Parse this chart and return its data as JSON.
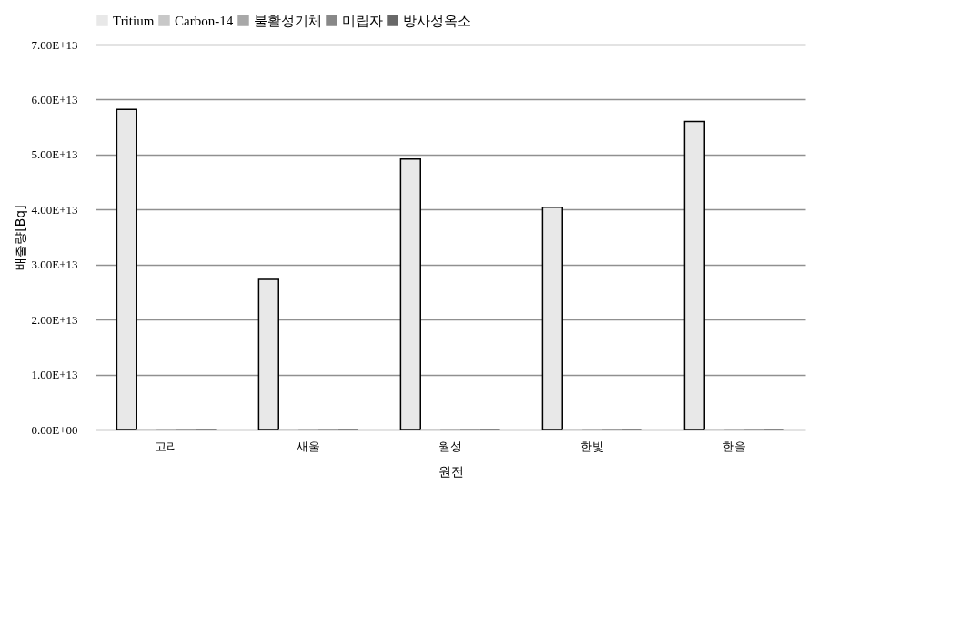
{
  "chart_data": {
    "type": "bar",
    "xlabel": "원전",
    "ylabel": "배출량[Bq]",
    "categories": [
      "고리",
      "새울",
      "월성",
      "한빛",
      "한울"
    ],
    "series": [
      {
        "name": "Tritium",
        "color": "#e8e8e8",
        "values": [
          58200000000000.0,
          27300000000000.0,
          49200000000000.0,
          40400000000000.0,
          56000000000000.0
        ]
      },
      {
        "name": "Carbon-14",
        "color": "#c8c8c8",
        "values": [
          0,
          0,
          0,
          0,
          0
        ]
      },
      {
        "name": "불활성기체",
        "color": "#a8a8a8",
        "values": [
          0,
          0,
          0,
          0,
          0
        ]
      },
      {
        "name": "미립자",
        "color": "#888888",
        "values": [
          0,
          0,
          0,
          0,
          0
        ]
      },
      {
        "name": "방사성옥소",
        "color": "#686868",
        "values": [
          0,
          0,
          0,
          0,
          0
        ]
      }
    ],
    "ylim": [
      0,
      70000000000000.0
    ],
    "yticks": [
      {
        "value": 0,
        "label": "0.00E+00"
      },
      {
        "value": 10000000000000.0,
        "label": "1.00E+13"
      },
      {
        "value": 20000000000000.0,
        "label": "2.00E+13"
      },
      {
        "value": 30000000000000.0,
        "label": "3.00E+13"
      },
      {
        "value": 40000000000000.0,
        "label": "4.00E+13"
      },
      {
        "value": 50000000000000.0,
        "label": "5.00E+13"
      },
      {
        "value": 60000000000000.0,
        "label": "6.00E+13"
      },
      {
        "value": 70000000000000.0,
        "label": "7.00E+13"
      }
    ],
    "grid": "y",
    "legend": "top"
  }
}
